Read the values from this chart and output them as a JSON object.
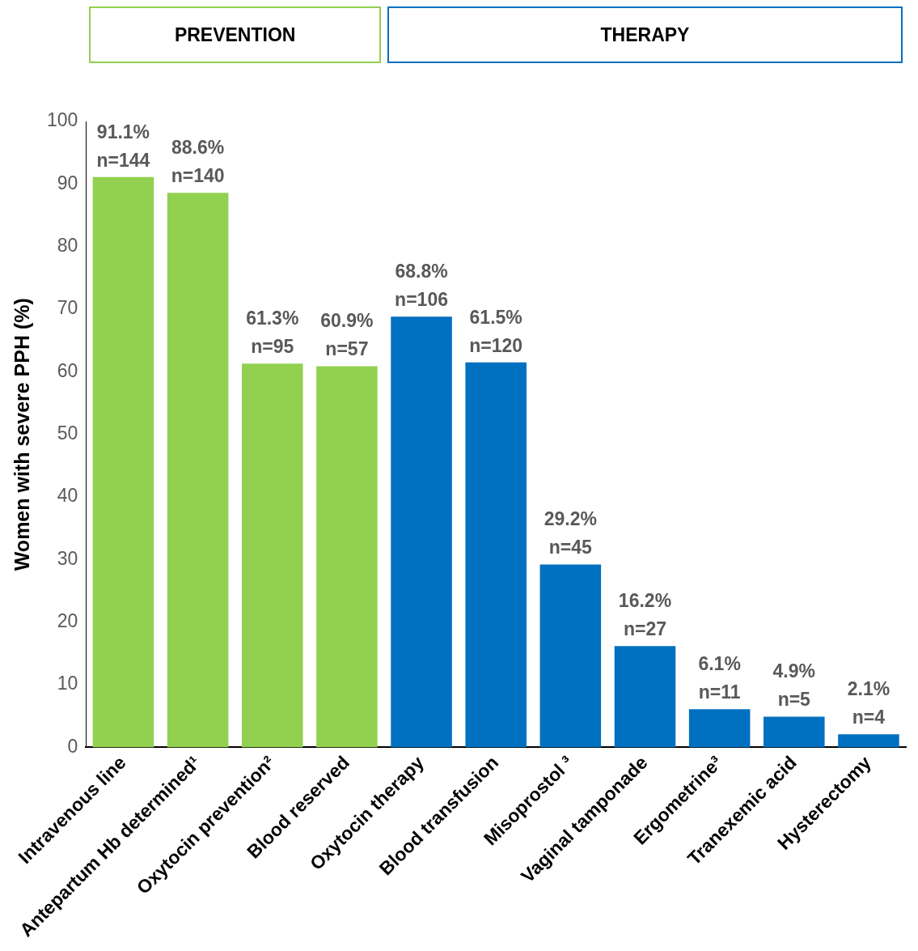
{
  "chart_data": {
    "type": "bar",
    "ylabel": "Women with severe PPH (%)",
    "annotations": [
      "PREVENTION",
      "THERAPY"
    ],
    "categories": [
      "Intravenous line",
      "Antepartum Hb determined¹",
      "Oxytocin prevention²",
      "Blood reserved",
      "Oxytocin therapy",
      "Blood transfusion",
      "Misoprostol ³",
      "Vaginal tamponade",
      "Ergometrine³",
      "Tranexemic acid",
      "Hysterectomy"
    ],
    "values": [
      91.1,
      88.6,
      61.3,
      60.9,
      68.8,
      61.5,
      29.2,
      16.2,
      6.1,
      4.9,
      2.1
    ],
    "colors": [
      "#92d050",
      "#92d050",
      "#92d050",
      "#92d050",
      "#0070c0",
      "#0070c0",
      "#0070c0",
      "#0070c0",
      "#0070c0",
      "#0070c0",
      "#0070c0"
    ],
    "value_labels": [
      "91.1%\nn=144",
      "88.6%\nn=140",
      "61.3%\nn=95",
      "60.9%\nn=57",
      "68.8%\nn=106",
      "61.5%\nn=120",
      "29.2%\nn=45",
      "16.2%\nn=27",
      "6.1%\nn=11",
      "4.9%\nn=5",
      "2.1%\nn=4"
    ],
    "ylim": [
      0,
      100
    ],
    "yticks": [
      0,
      10,
      20,
      30,
      40,
      50,
      60,
      70,
      80,
      90,
      100
    ],
    "grid": false,
    "legend": false
  }
}
